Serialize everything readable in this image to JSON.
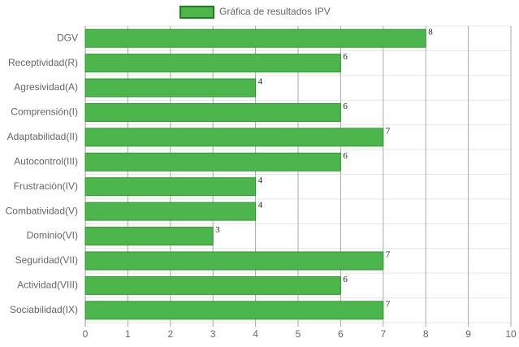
{
  "chart_data": {
    "type": "bar",
    "orientation": "horizontal",
    "legend": "Gráfica de resultados IPV",
    "legend_position": "top",
    "categories": [
      "DGV",
      "Receptividad(R)",
      "Agresividad(A)",
      "Comprensión(I)",
      "Adaptabilidad(II)",
      "Autocontrol(III)",
      "Frustración(IV)",
      "Combatividad(V)",
      "Dominio(VI)",
      "Seguridad(VII)",
      "Actividad(VIII)",
      "Sociabilidad(IX)"
    ],
    "values": [
      8,
      6,
      4,
      6,
      7,
      6,
      4,
      4,
      3,
      7,
      6,
      7
    ],
    "color": "#4cb54c",
    "border_color": "#2e9a2e",
    "xlim": [
      0,
      10
    ],
    "xticks": [
      0,
      1,
      2,
      3,
      4,
      5,
      6,
      7,
      8,
      9,
      10
    ],
    "grid": true
  }
}
